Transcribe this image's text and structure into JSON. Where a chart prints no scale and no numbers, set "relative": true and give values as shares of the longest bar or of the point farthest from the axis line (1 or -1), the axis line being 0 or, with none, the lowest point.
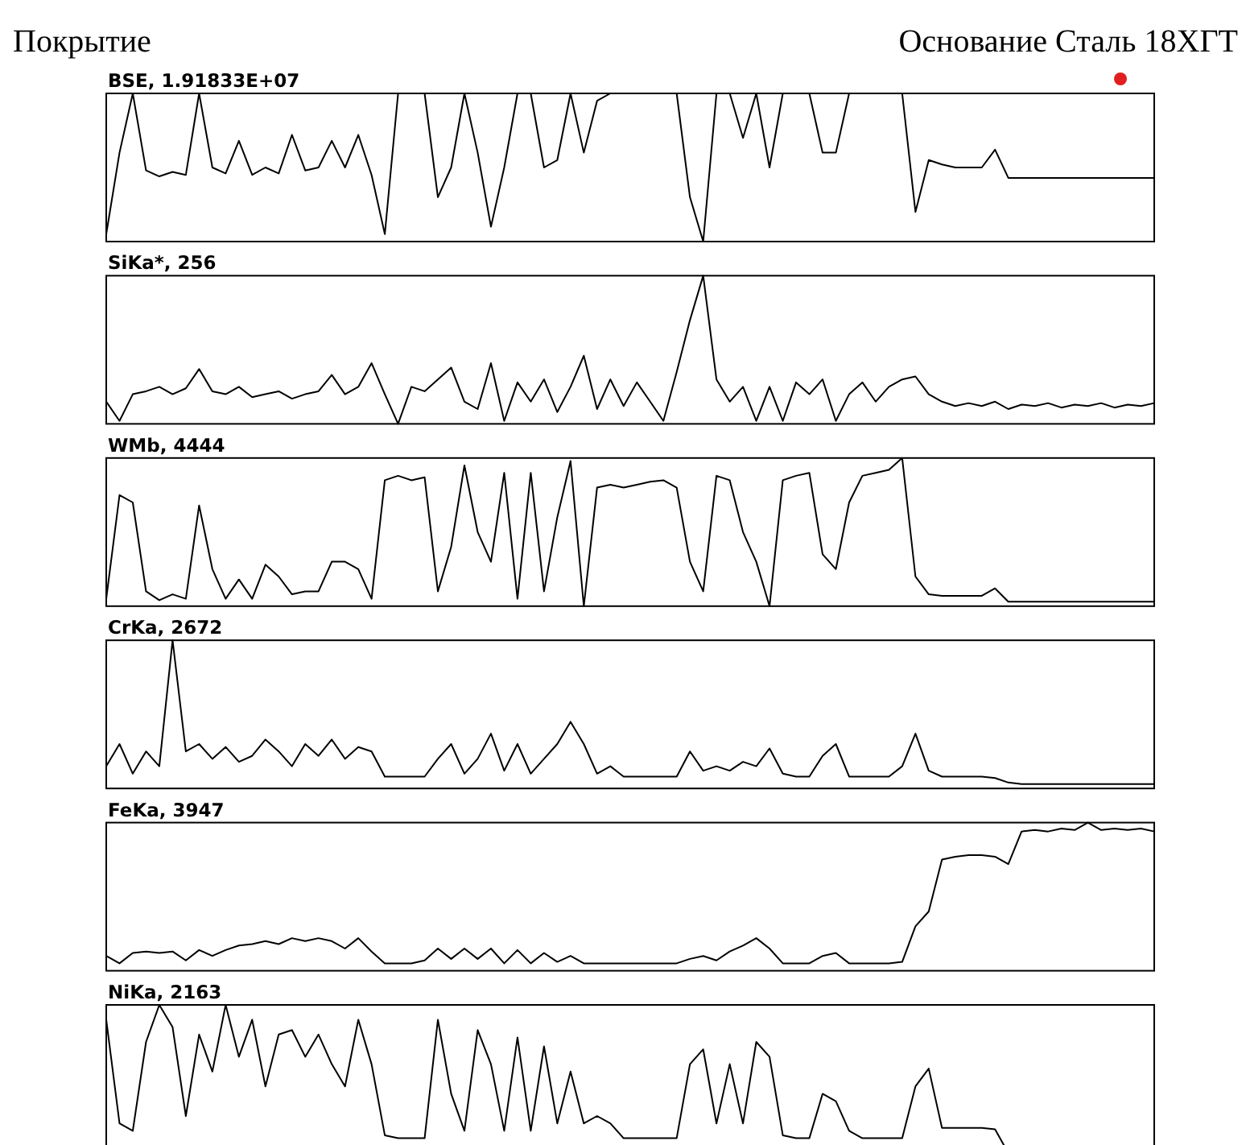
{
  "chart_data": [
    {
      "type": "line",
      "relative": true,
      "title": "BSE, 1.91833E+07",
      "annotations": [
        "Покрытие",
        "Основание Сталь 18ХГТ"
      ],
      "categories": [
        null,
        null,
        null,
        null,
        null,
        null,
        null,
        null,
        null,
        null,
        null,
        null,
        null,
        null,
        null,
        null,
        null,
        null,
        null,
        null,
        null,
        null,
        null,
        null,
        null,
        null,
        null,
        null,
        null,
        null,
        null,
        null,
        null,
        null,
        null,
        null,
        null,
        null,
        null,
        null,
        null,
        null,
        null,
        null,
        null,
        null,
        null,
        null,
        null,
        null,
        null,
        null,
        null,
        null,
        null,
        null,
        null,
        null,
        null,
        null,
        null,
        null,
        null,
        null,
        null,
        null,
        null,
        null,
        null,
        null,
        null,
        null,
        null,
        null,
        null,
        null,
        null,
        null,
        null,
        null
      ],
      "series": [
        {
          "color": "#000000",
          "values": [
            0.05,
            0.6,
            1,
            0.48,
            0.44,
            0.47,
            0.45,
            1,
            0.5,
            0.46,
            0.68,
            0.45,
            0.5,
            0.46,
            0.72,
            0.48,
            0.5,
            0.68,
            0.5,
            0.72,
            0.45,
            0.05,
            1,
            1,
            1,
            0.3,
            0.5,
            1,
            0.6,
            0.1,
            0.5,
            1,
            1,
            0.5,
            0.55,
            1,
            0.6,
            0.95,
            1,
            1,
            1,
            1,
            1,
            1,
            0.3,
            0,
            1,
            1,
            0.7,
            1,
            0.5,
            1,
            1,
            1,
            0.6,
            0.6,
            1,
            1,
            1,
            1,
            1,
            0.2,
            0.55,
            0.52,
            0.5,
            0.5,
            0.5,
            0.62,
            0.43,
            0.43,
            0.43,
            0.43,
            0.43,
            0.43,
            0.43,
            0.43,
            0.43,
            0.43,
            0.43,
            0.43
          ]
        }
      ]
    },
    {
      "type": "line",
      "relative": true,
      "title": "SiKa*, 256",
      "categories": [
        null,
        null,
        null,
        null,
        null,
        null,
        null,
        null,
        null,
        null,
        null,
        null,
        null,
        null,
        null,
        null,
        null,
        null,
        null,
        null,
        null,
        null,
        null,
        null,
        null,
        null,
        null,
        null,
        null,
        null,
        null,
        null,
        null,
        null,
        null,
        null,
        null,
        null,
        null,
        null,
        null,
        null,
        null,
        null,
        null,
        null,
        null,
        null,
        null,
        null,
        null,
        null,
        null,
        null,
        null,
        null,
        null,
        null,
        null,
        null,
        null,
        null,
        null,
        null,
        null,
        null,
        null,
        null,
        null,
        null,
        null,
        null,
        null,
        null,
        null,
        null,
        null,
        null,
        null,
        null
      ],
      "series": [
        {
          "color": "#000000",
          "values": [
            0.15,
            0.02,
            0.2,
            0.22,
            0.25,
            0.2,
            0.24,
            0.37,
            0.22,
            0.2,
            0.25,
            0.18,
            0.2,
            0.22,
            0.17,
            0.2,
            0.22,
            0.33,
            0.2,
            0.25,
            0.41,
            0.2,
            0.0,
            0.25,
            0.22,
            0.3,
            0.38,
            0.15,
            0.1,
            0.41,
            0.02,
            0.28,
            0.15,
            0.3,
            0.08,
            0.25,
            0.46,
            0.1,
            0.3,
            0.12,
            0.28,
            0.15,
            0.02,
            0.35,
            0.7,
            1.0,
            0.3,
            0.15,
            0.25,
            0.02,
            0.25,
            0.02,
            0.28,
            0.2,
            0.3,
            0.02,
            0.2,
            0.28,
            0.15,
            0.25,
            0.3,
            0.32,
            0.2,
            0.15,
            0.12,
            0.14,
            0.12,
            0.15,
            0.1,
            0.13,
            0.12,
            0.14,
            0.11,
            0.13,
            0.12,
            0.14,
            0.11,
            0.13,
            0.12,
            0.14
          ]
        }
      ]
    },
    {
      "type": "line",
      "relative": true,
      "title": "WMb, 4444",
      "categories": [
        null,
        null,
        null,
        null,
        null,
        null,
        null,
        null,
        null,
        null,
        null,
        null,
        null,
        null,
        null,
        null,
        null,
        null,
        null,
        null,
        null,
        null,
        null,
        null,
        null,
        null,
        null,
        null,
        null,
        null,
        null,
        null,
        null,
        null,
        null,
        null,
        null,
        null,
        null,
        null,
        null,
        null,
        null,
        null,
        null,
        null,
        null,
        null,
        null,
        null,
        null,
        null,
        null,
        null,
        null,
        null,
        null,
        null,
        null,
        null,
        null,
        null,
        null,
        null,
        null,
        null,
        null,
        null,
        null,
        null,
        null,
        null,
        null,
        null,
        null,
        null,
        null,
        null,
        null,
        null
      ],
      "series": [
        {
          "color": "#000000",
          "values": [
            0.05,
            0.75,
            0.7,
            0.1,
            0.04,
            0.08,
            0.05,
            0.68,
            0.25,
            0.05,
            0.18,
            0.05,
            0.28,
            0.2,
            0.08,
            0.1,
            0.1,
            0.3,
            0.3,
            0.25,
            0.05,
            0.85,
            0.88,
            0.85,
            0.87,
            0.1,
            0.4,
            0.95,
            0.5,
            0.3,
            0.9,
            0.05,
            0.9,
            0.1,
            0.6,
            0.98,
            0.0,
            0.8,
            0.82,
            0.8,
            0.82,
            0.84,
            0.85,
            0.8,
            0.3,
            0.1,
            0.88,
            0.85,
            0.5,
            0.3,
            0.0,
            0.85,
            0.88,
            0.9,
            0.35,
            0.25,
            0.7,
            0.88,
            0.9,
            0.92,
            1.0,
            0.2,
            0.08,
            0.07,
            0.07,
            0.07,
            0.07,
            0.12,
            0.03,
            0.03,
            0.03,
            0.03,
            0.03,
            0.03,
            0.03,
            0.03,
            0.03,
            0.03,
            0.03,
            0.03
          ]
        }
      ]
    },
    {
      "type": "line",
      "relative": true,
      "title": "CrKa, 2672",
      "categories": [
        null,
        null,
        null,
        null,
        null,
        null,
        null,
        null,
        null,
        null,
        null,
        null,
        null,
        null,
        null,
        null,
        null,
        null,
        null,
        null,
        null,
        null,
        null,
        null,
        null,
        null,
        null,
        null,
        null,
        null,
        null,
        null,
        null,
        null,
        null,
        null,
        null,
        null,
        null,
        null,
        null,
        null,
        null,
        null,
        null,
        null,
        null,
        null,
        null,
        null,
        null,
        null,
        null,
        null,
        null,
        null,
        null,
        null,
        null,
        null,
        null,
        null,
        null,
        null,
        null,
        null,
        null,
        null,
        null,
        null,
        null,
        null,
        null,
        null,
        null,
        null,
        null,
        null,
        null,
        null
      ],
      "series": [
        {
          "color": "#000000",
          "values": [
            0.15,
            0.3,
            0.1,
            0.25,
            0.15,
            1.0,
            0.25,
            0.3,
            0.2,
            0.28,
            0.18,
            0.22,
            0.33,
            0.25,
            0.15,
            0.3,
            0.22,
            0.33,
            0.2,
            0.28,
            0.25,
            0.08,
            0.08,
            0.08,
            0.08,
            0.2,
            0.3,
            0.1,
            0.2,
            0.37,
            0.12,
            0.3,
            0.1,
            0.2,
            0.3,
            0.45,
            0.3,
            0.1,
            0.15,
            0.08,
            0.08,
            0.08,
            0.08,
            0.08,
            0.25,
            0.12,
            0.15,
            0.12,
            0.18,
            0.15,
            0.27,
            0.1,
            0.08,
            0.08,
            0.22,
            0.3,
            0.08,
            0.08,
            0.08,
            0.08,
            0.15,
            0.37,
            0.12,
            0.08,
            0.08,
            0.08,
            0.08,
            0.07,
            0.04,
            0.03,
            0.03,
            0.03,
            0.03,
            0.03,
            0.03,
            0.03,
            0.03,
            0.03,
            0.03,
            0.03
          ]
        }
      ]
    },
    {
      "type": "line",
      "relative": true,
      "title": "FeKa, 3947",
      "categories": [
        null,
        null,
        null,
        null,
        null,
        null,
        null,
        null,
        null,
        null,
        null,
        null,
        null,
        null,
        null,
        null,
        null,
        null,
        null,
        null,
        null,
        null,
        null,
        null,
        null,
        null,
        null,
        null,
        null,
        null,
        null,
        null,
        null,
        null,
        null,
        null,
        null,
        null,
        null,
        null,
        null,
        null,
        null,
        null,
        null,
        null,
        null,
        null,
        null,
        null,
        null,
        null,
        null,
        null,
        null,
        null,
        null,
        null,
        null,
        null,
        null,
        null,
        null,
        null,
        null,
        null,
        null,
        null,
        null,
        null,
        null,
        null,
        null,
        null,
        null,
        null,
        null,
        null,
        null,
        null
      ],
      "series": [
        {
          "color": "#000000",
          "values": [
            0.1,
            0.05,
            0.12,
            0.13,
            0.12,
            0.13,
            0.07,
            0.14,
            0.1,
            0.14,
            0.17,
            0.18,
            0.2,
            0.18,
            0.22,
            0.2,
            0.22,
            0.2,
            0.15,
            0.22,
            0.13,
            0.05,
            0.05,
            0.05,
            0.07,
            0.15,
            0.08,
            0.15,
            0.08,
            0.15,
            0.05,
            0.14,
            0.05,
            0.12,
            0.06,
            0.1,
            0.05,
            0.05,
            0.05,
            0.05,
            0.05,
            0.05,
            0.05,
            0.05,
            0.08,
            0.1,
            0.07,
            0.13,
            0.17,
            0.22,
            0.15,
            0.05,
            0.05,
            0.05,
            0.1,
            0.12,
            0.05,
            0.05,
            0.05,
            0.05,
            0.06,
            0.3,
            0.4,
            0.75,
            0.77,
            0.78,
            0.78,
            0.77,
            0.72,
            0.94,
            0.95,
            0.94,
            0.96,
            0.95,
            1.0,
            0.95,
            0.96,
            0.95,
            0.96,
            0.94
          ]
        }
      ]
    },
    {
      "type": "line",
      "relative": true,
      "title": "NiKa, 2163",
      "categories": [
        null,
        null,
        null,
        null,
        null,
        null,
        null,
        null,
        null,
        null,
        null,
        null,
        null,
        null,
        null,
        null,
        null,
        null,
        null,
        null,
        null,
        null,
        null,
        null,
        null,
        null,
        null,
        null,
        null,
        null,
        null,
        null,
        null,
        null,
        null,
        null,
        null,
        null,
        null,
        null,
        null,
        null,
        null,
        null,
        null,
        null,
        null,
        null,
        null,
        null,
        null,
        null,
        null,
        null,
        null,
        null,
        null,
        null,
        null,
        null,
        null,
        null,
        null,
        null,
        null,
        null,
        null,
        null,
        null,
        null,
        null,
        null,
        null,
        null,
        null,
        null,
        null,
        null,
        null,
        null
      ],
      "series": [
        {
          "color": "#000000",
          "values": [
            0.9,
            0.2,
            0.15,
            0.75,
            1.0,
            0.85,
            0.25,
            0.8,
            0.55,
            1.0,
            0.65,
            0.9,
            0.45,
            0.8,
            0.83,
            0.65,
            0.8,
            0.6,
            0.45,
            0.9,
            0.6,
            0.12,
            0.1,
            0.1,
            0.1,
            0.9,
            0.4,
            0.15,
            0.83,
            0.6,
            0.15,
            0.78,
            0.15,
            0.72,
            0.2,
            0.55,
            0.2,
            0.25,
            0.2,
            0.1,
            0.1,
            0.1,
            0.1,
            0.1,
            0.6,
            0.7,
            0.2,
            0.6,
            0.2,
            0.75,
            0.65,
            0.12,
            0.1,
            0.1,
            0.4,
            0.35,
            0.15,
            0.1,
            0.1,
            0.1,
            0.1,
            0.45,
            0.57,
            0.17,
            0.17,
            0.17,
            0.17,
            0.16,
            0.0,
            null,
            null,
            null,
            null,
            null,
            null,
            null,
            null,
            null,
            null,
            null
          ]
        }
      ]
    }
  ]
}
